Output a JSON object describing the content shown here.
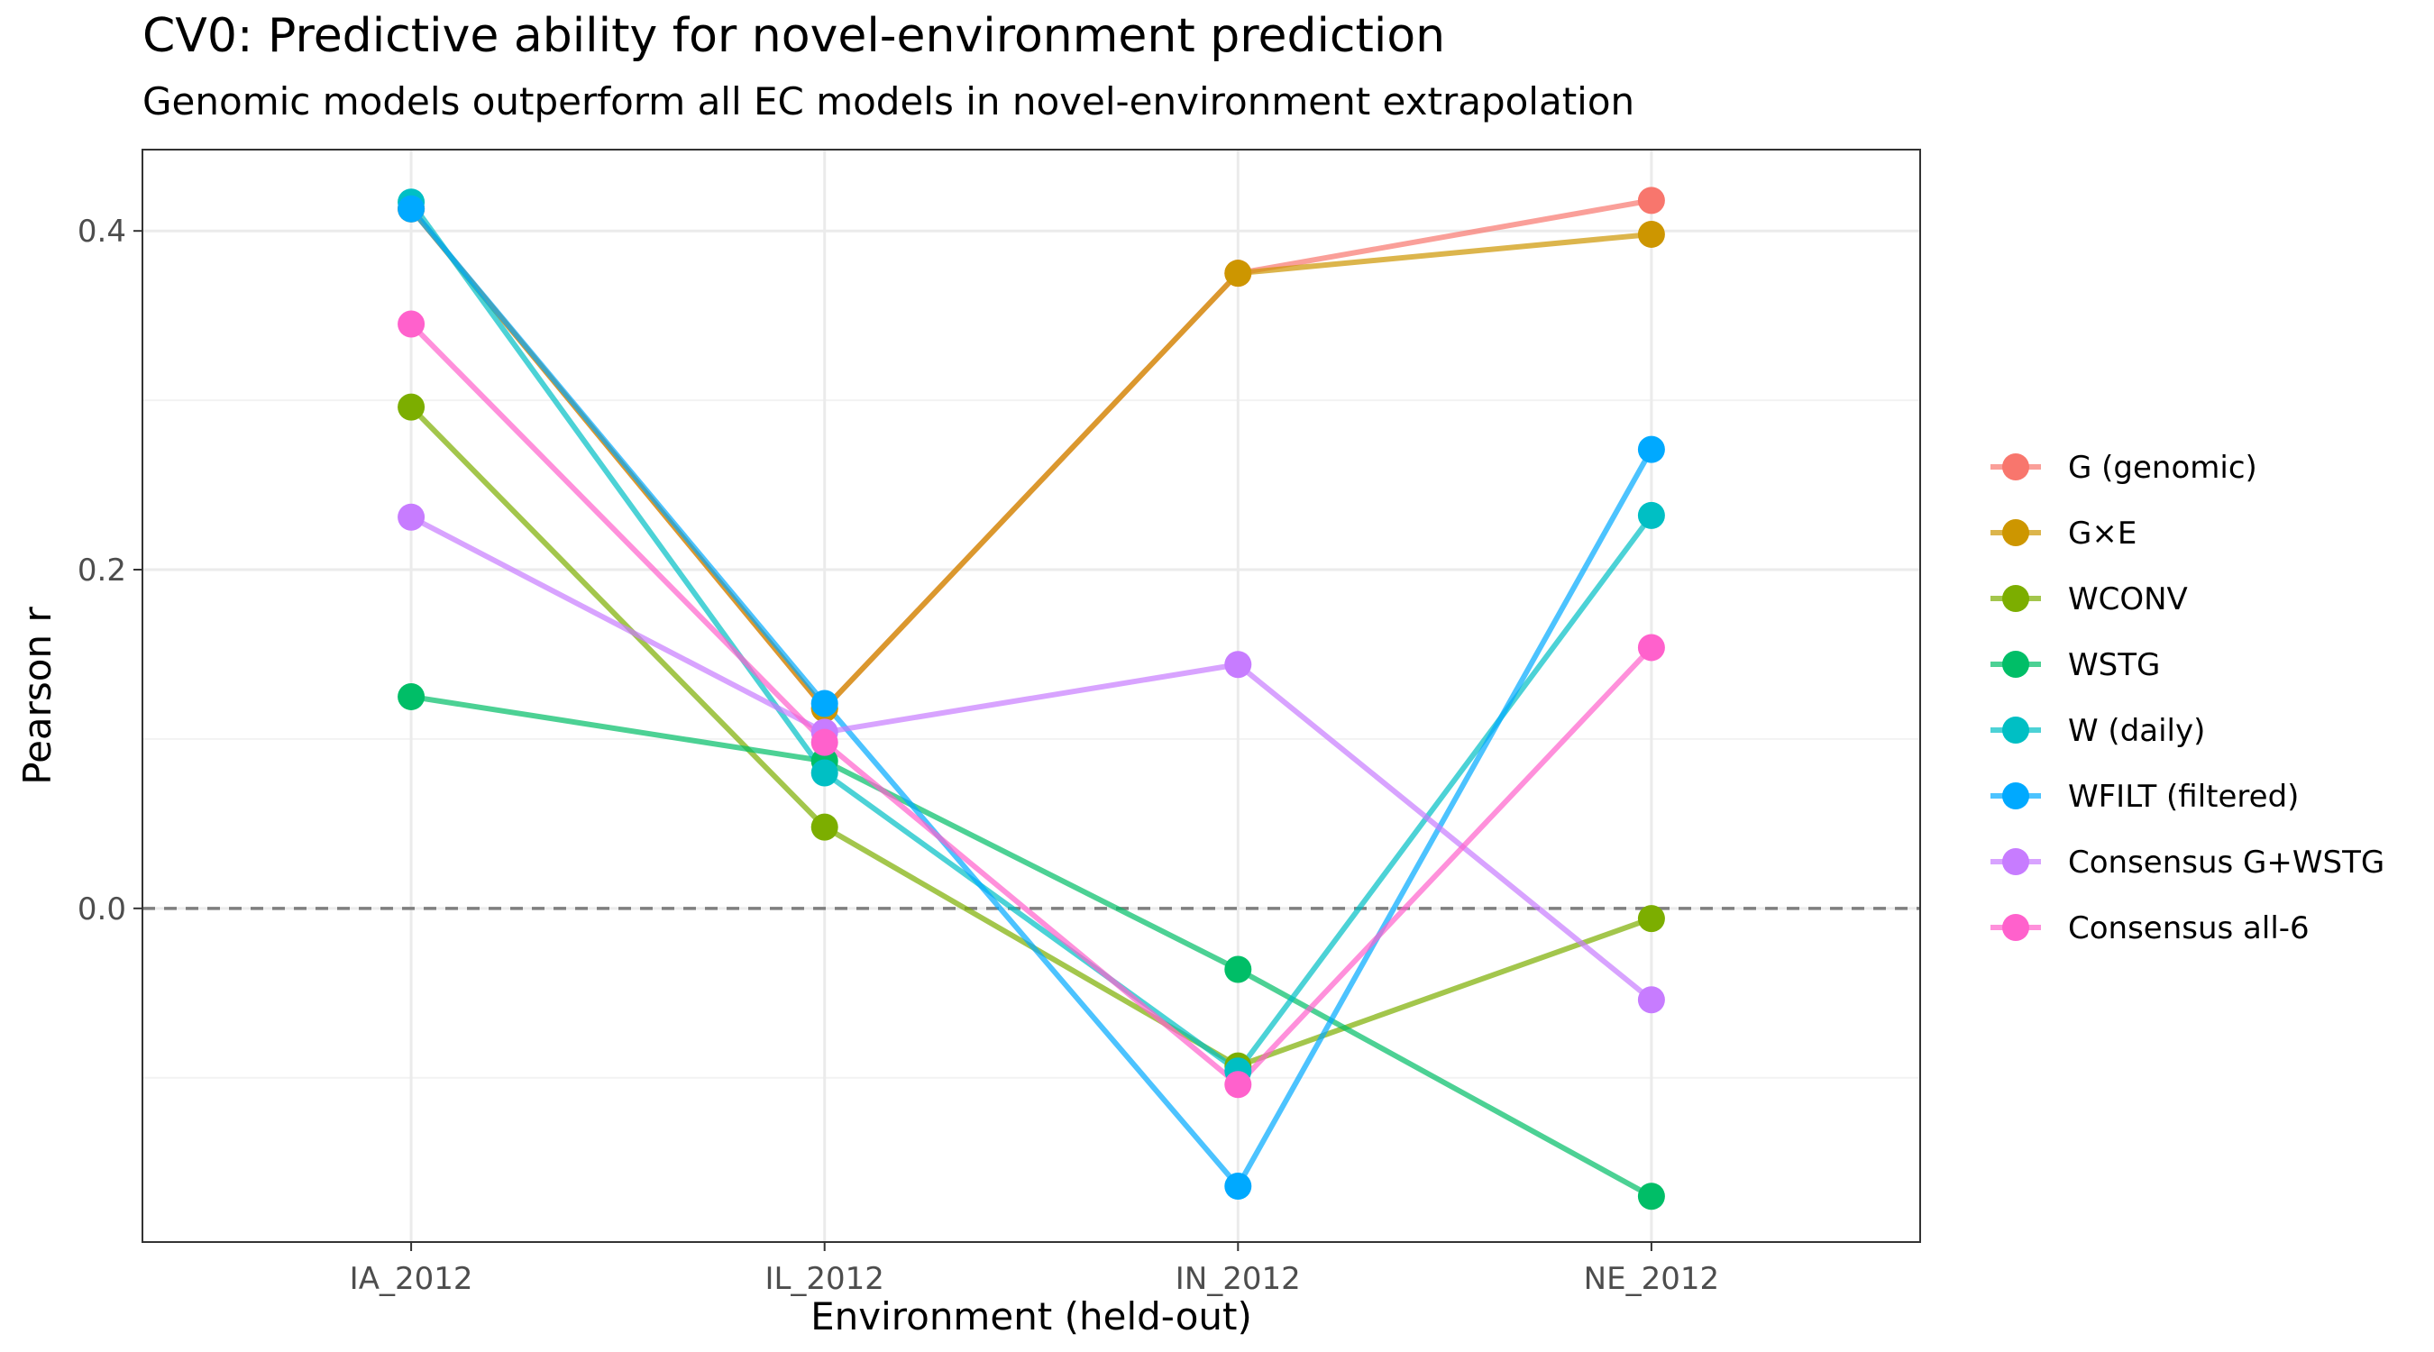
{
  "chart_data": {
    "type": "line",
    "title": "CV0: Predictive ability for novel-environment prediction",
    "subtitle": "Genomic models outperform all EC models in novel-environment extrapolation",
    "xlabel": "Environment (held-out)",
    "ylabel": "Pearson r",
    "categories": [
      "IA_2012",
      "IL_2012",
      "IN_2012",
      "NE_2012"
    ],
    "ylim": [
      -0.197,
      0.448
    ],
    "yticks": [
      0.0,
      0.2,
      0.4
    ],
    "ytick_labels": [
      "0.0",
      "0.2",
      "0.4"
    ],
    "grid": true,
    "reference_line": {
      "y": 0.0,
      "style": "dashed"
    },
    "legend_position": "right",
    "series": [
      {
        "name": "G (genomic)",
        "color": "#F8766D",
        "values": [
          0.413,
          0.118,
          0.375,
          0.418
        ]
      },
      {
        "name": "G×E",
        "color": "#CD9600",
        "values": [
          0.413,
          0.118,
          0.375,
          0.398
        ]
      },
      {
        "name": "WCONV",
        "color": "#7CAE00",
        "values": [
          0.296,
          0.048,
          -0.093,
          -0.006
        ]
      },
      {
        "name": "WSTG",
        "color": "#00BE67",
        "values": [
          0.125,
          0.087,
          -0.036,
          -0.17
        ]
      },
      {
        "name": "W (daily)",
        "color": "#00BFC4",
        "values": [
          0.417,
          0.08,
          -0.096,
          0.232
        ]
      },
      {
        "name": "WFILT (filtered)",
        "color": "#00A9FF",
        "values": [
          0.413,
          0.121,
          -0.164,
          0.271
        ]
      },
      {
        "name": "Consensus G+WSTG",
        "color": "#C77CFF",
        "values": [
          0.231,
          0.104,
          0.144,
          -0.054
        ]
      },
      {
        "name": "Consensus all-6",
        "color": "#FF61CC",
        "values": [
          0.345,
          0.098,
          -0.104,
          0.154
        ]
      }
    ]
  }
}
